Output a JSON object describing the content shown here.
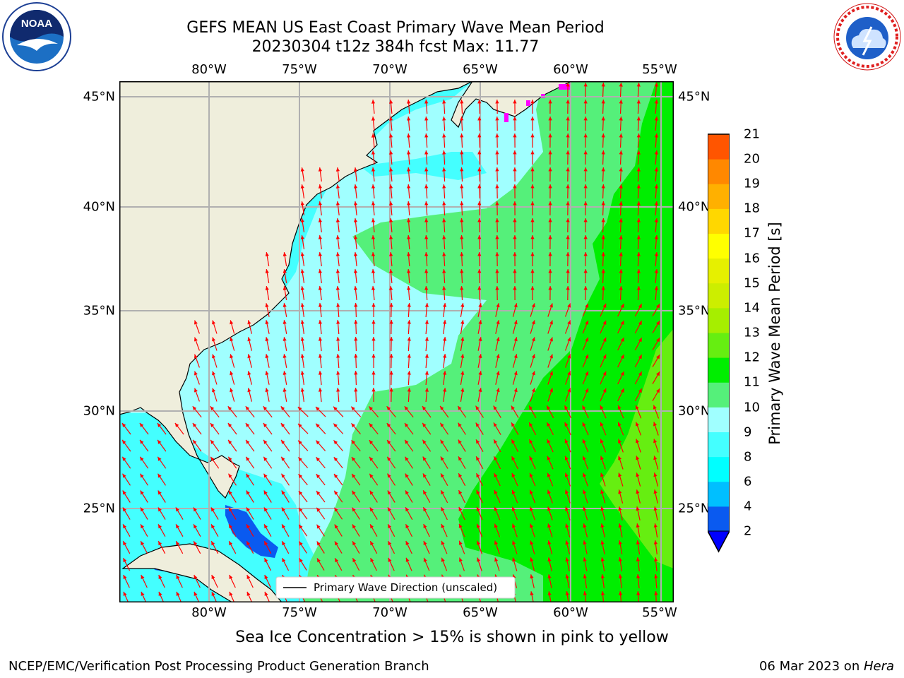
{
  "title": {
    "line1": "GEFS MEAN US East Coast Primary Wave Mean Period",
    "line2": "20230304 t12z 384h fcst   Max: 11.77"
  },
  "longitude_labels": [
    "80°W",
    "75°W",
    "70°W",
    "65°W",
    "60°W",
    "55°W"
  ],
  "latitude_labels": [
    "45°N",
    "40°N",
    "35°N",
    "30°N",
    "25°N"
  ],
  "legend": {
    "label": "Primary Wave Direction (unscaled)"
  },
  "colorbar": {
    "label": "Primary Wave Mean Period [s]",
    "ticks": [
      "2",
      "4",
      "6",
      "8",
      "9",
      "10",
      "11",
      "12",
      "13",
      "14",
      "15",
      "16",
      "17",
      "18",
      "19",
      "20",
      "21"
    ],
    "colors": [
      "#0a5af0",
      "#00bfff",
      "#00ffff",
      "#44ffff",
      "#a0ffff",
      "#55f07a",
      "#00ee00",
      "#66ee11",
      "#a6ee00",
      "#ccee00",
      "#e6f000",
      "#ffff00",
      "#ffd700",
      "#ffb000",
      "#ff8800",
      "#ff5500",
      "#ff2200",
      "#ff0000"
    ],
    "extend_color": "#0000ff"
  },
  "footnote": "Sea Ice Concentration > 15% is shown in pink to yellow",
  "credit_left": "NCEP/EMC/Verification Post Processing Product Generation Branch",
  "credit_right_date": "06 Mar 2023 on ",
  "credit_right_machine": "Hera",
  "logos": {
    "left": {
      "icon": "noaa-logo",
      "text": "NOAA"
    },
    "right": {
      "icon": "nws-logo",
      "text": "NATIONAL WEATHER SERVICE"
    }
  },
  "colors": {
    "land": "#efeedc",
    "arrow": "#ff0000",
    "grid": "#b0b0b0",
    "sea_ice": "#ff00ff"
  }
}
